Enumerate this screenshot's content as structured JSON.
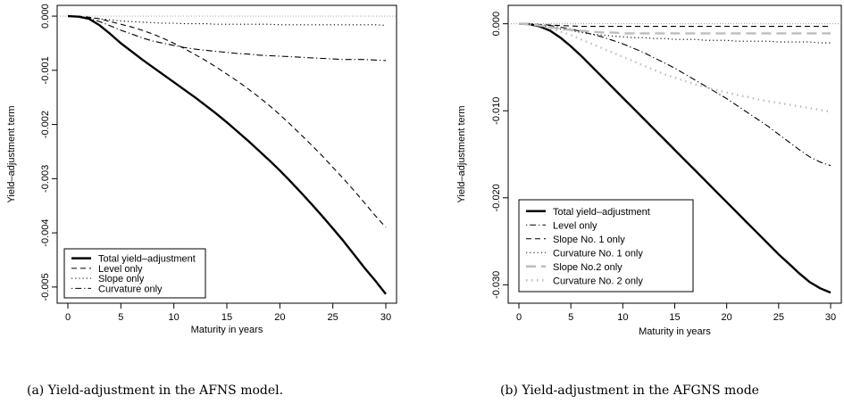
{
  "chart_data": [
    {
      "type": "line",
      "caption": "(a) Yield-adjustment in the AFNS model.",
      "xlabel": "Maturity in years",
      "ylabel": "Yield–adjustment term",
      "xlim": [
        0,
        30
      ],
      "ylim": [
        -0.0052,
        0.0001
      ],
      "xticks": [
        "0",
        "5",
        "10",
        "15",
        "20",
        "25",
        "30"
      ],
      "yticks": [
        "0.000",
        "-0.001",
        "-0.002",
        "-0.003",
        "-0.004",
        "-0.005"
      ],
      "ytick_values": [
        0,
        -0.001,
        -0.002,
        -0.003,
        -0.004,
        -0.005
      ],
      "xtick_values": [
        0,
        5,
        10,
        15,
        20,
        25,
        30
      ],
      "legend_position": "bottom-left",
      "x": [
        0,
        1,
        2,
        3,
        4,
        5,
        6,
        7,
        8,
        9,
        10,
        11,
        12,
        13,
        14,
        15,
        16,
        17,
        18,
        19,
        20,
        21,
        22,
        23,
        24,
        25,
        26,
        27,
        28,
        29,
        30
      ],
      "reference_line": 0,
      "series": [
        {
          "name": "Total yield–adjustment",
          "style": "solid",
          "values": [
            0,
            -1e-05,
            -5e-05,
            -0.00017,
            -0.00033,
            -0.0005,
            -0.00065,
            -0.0008,
            -0.00094,
            -0.00108,
            -0.00122,
            -0.00136,
            -0.0015,
            -0.00165,
            -0.0018,
            -0.00196,
            -0.00213,
            -0.0023,
            -0.00248,
            -0.00266,
            -0.00285,
            -0.00305,
            -0.00326,
            -0.00347,
            -0.00369,
            -0.00392,
            -0.00415,
            -0.0044,
            -0.00465,
            -0.00488,
            -0.00513
          ]
        },
        {
          "name": "Level only",
          "style": "dashed",
          "values": [
            0,
            0,
            -2e-05,
            -5e-05,
            -0.0001,
            -0.00015,
            -0.0002,
            -0.00026,
            -0.00033,
            -0.00041,
            -0.0005,
            -0.0006,
            -0.00071,
            -0.00082,
            -0.00094,
            -0.00107,
            -0.0012,
            -0.00134,
            -0.00149,
            -0.00165,
            -0.00182,
            -0.002,
            -0.00219,
            -0.00238,
            -0.00258,
            -0.00279,
            -0.003,
            -0.00322,
            -0.00345,
            -0.00368,
            -0.0039
          ]
        },
        {
          "name": "Slope only",
          "style": "dotted",
          "values": [
            0,
            -1e-05,
            -3e-05,
            -5e-05,
            -7e-05,
            -9e-05,
            -0.0001,
            -0.00011,
            -0.00012,
            -0.00013,
            -0.00013,
            -0.00014,
            -0.00014,
            -0.00014,
            -0.00015,
            -0.00015,
            -0.00015,
            -0.00015,
            -0.00015,
            -0.00015,
            -0.00016,
            -0.00016,
            -0.00016,
            -0.00016,
            -0.00016,
            -0.00016,
            -0.00016,
            -0.00016,
            -0.00016,
            -0.00016,
            -0.00017
          ]
        },
        {
          "name": "Curvature only",
          "style": "dotdash",
          "values": [
            0,
            -1e-05,
            -4e-05,
            -0.0001,
            -0.00018,
            -0.00026,
            -0.00033,
            -0.0004,
            -0.00046,
            -0.0005,
            -0.00054,
            -0.00058,
            -0.00061,
            -0.00063,
            -0.00065,
            -0.00067,
            -0.00069,
            -0.0007,
            -0.00072,
            -0.00073,
            -0.00074,
            -0.00075,
            -0.00076,
            -0.00077,
            -0.00078,
            -0.00079,
            -0.0008,
            -0.0008,
            -0.0008,
            -0.00081,
            -0.00082
          ]
        }
      ]
    },
    {
      "type": "line",
      "caption": "(b) Yield-adjustment in the AFGNS mode",
      "xlabel": "Maturity in years",
      "ylabel": "Yield–adjustment term",
      "xlim": [
        0,
        30
      ],
      "ylim": [
        -0.0315,
        0.0015
      ],
      "xticks": [
        "0",
        "5",
        "10",
        "15",
        "20",
        "25",
        "30"
      ],
      "yticks": [
        "0.000",
        "-0.010",
        "-0.020",
        "-0.030"
      ],
      "ytick_values": [
        0,
        -0.01,
        -0.02,
        -0.03
      ],
      "xtick_values": [
        0,
        5,
        10,
        15,
        20,
        25,
        30
      ],
      "legend_position": "bottom-left",
      "x": [
        0,
        1,
        2,
        3,
        4,
        5,
        6,
        7,
        8,
        9,
        10,
        11,
        12,
        13,
        14,
        15,
        16,
        17,
        18,
        19,
        20,
        21,
        22,
        23,
        24,
        25,
        26,
        27,
        28,
        29,
        30
      ],
      "reference_line": 0,
      "series": [
        {
          "name": "Total yield–adjustment",
          "style": "solid",
          "values": [
            0,
            -5e-05,
            -0.0003,
            -0.0008,
            -0.0016,
            -0.0026,
            -0.0037,
            -0.0049,
            -0.0061,
            -0.0073,
            -0.0085,
            -0.0097,
            -0.0109,
            -0.0121,
            -0.0133,
            -0.0145,
            -0.0157,
            -0.0169,
            -0.0181,
            -0.0193,
            -0.0205,
            -0.0217,
            -0.0229,
            -0.0241,
            -0.0253,
            -0.0265,
            -0.0276,
            -0.0287,
            -0.0297,
            -0.0304,
            -0.0309
          ]
        },
        {
          "name": "Level only",
          "style": "dotdash",
          "values": [
            0,
            0,
            -0.0001,
            -0.0002,
            -0.0004,
            -0.0006,
            -0.0009,
            -0.0012,
            -0.0015,
            -0.0019,
            -0.0023,
            -0.0028,
            -0.0033,
            -0.0039,
            -0.0045,
            -0.0051,
            -0.0058,
            -0.0065,
            -0.0072,
            -0.0079,
            -0.0086,
            -0.0094,
            -0.0102,
            -0.011,
            -0.0118,
            -0.0127,
            -0.0136,
            -0.0145,
            -0.0153,
            -0.0159,
            -0.0163
          ]
        },
        {
          "name": "Slope No. 1 only",
          "style": "dashed",
          "values": [
            0,
            -5e-05,
            -0.0001,
            -0.00015,
            -0.0002,
            -0.00025,
            -0.0003,
            -0.0003,
            -0.0003,
            -0.0003,
            -0.0003,
            -0.0003,
            -0.0003,
            -0.0003,
            -0.0003,
            -0.0003,
            -0.0003,
            -0.0003,
            -0.0003,
            -0.0003,
            -0.0003,
            -0.0003,
            -0.0003,
            -0.0003,
            -0.0003,
            -0.0003,
            -0.0003,
            -0.0003,
            -0.0003,
            -0.0003,
            -0.0003
          ]
        },
        {
          "name": "Curvature No. 1 only",
          "style": "dotted",
          "values": [
            0,
            -5e-05,
            -0.0002,
            -0.0004,
            -0.0006,
            -0.0008,
            -0.001,
            -0.0012,
            -0.0013,
            -0.0014,
            -0.0015,
            -0.0016,
            -0.0016,
            -0.0017,
            -0.0017,
            -0.0018,
            -0.0018,
            -0.0018,
            -0.0019,
            -0.0019,
            -0.0019,
            -0.002,
            -0.002,
            -0.002,
            -0.002,
            -0.0021,
            -0.0021,
            -0.0021,
            -0.0021,
            -0.0022,
            -0.0022
          ]
        },
        {
          "name": "Slope No.2 only",
          "style": "longdash-gray",
          "values": [
            0,
            -5e-05,
            -0.0002,
            -0.0004,
            -0.0006,
            -0.0007,
            -0.0008,
            -0.0009,
            -0.001,
            -0.001,
            -0.0011,
            -0.0011,
            -0.0011,
            -0.0011,
            -0.0011,
            -0.0011,
            -0.0011,
            -0.0011,
            -0.0011,
            -0.0011,
            -0.0011,
            -0.0011,
            -0.0011,
            -0.0011,
            -0.0011,
            -0.0011,
            -0.0011,
            -0.0011,
            -0.0011,
            -0.0011,
            -0.0011
          ]
        },
        {
          "name": "Curvature No. 2 only",
          "style": "dotted-gray",
          "values": [
            0,
            -5e-05,
            -0.0002,
            -0.0005,
            -0.0009,
            -0.0013,
            -0.0018,
            -0.0023,
            -0.0028,
            -0.0033,
            -0.0038,
            -0.0043,
            -0.0048,
            -0.0053,
            -0.0058,
            -0.0062,
            -0.0066,
            -0.007,
            -0.0073,
            -0.0076,
            -0.0079,
            -0.0082,
            -0.0084,
            -0.0087,
            -0.0089,
            -0.0091,
            -0.0093,
            -0.0095,
            -0.0097,
            -0.0099,
            -0.0101
          ]
        }
      ]
    }
  ]
}
